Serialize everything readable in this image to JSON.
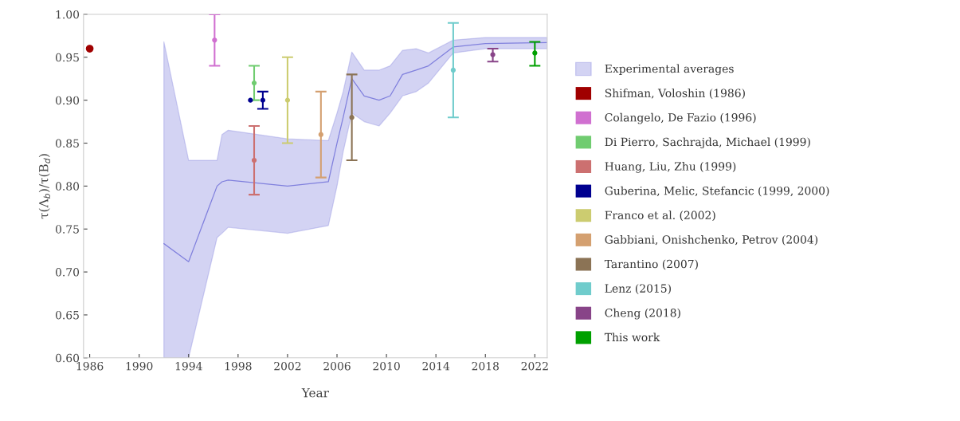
{
  "chart_data": {
    "type": "scatter",
    "xlabel": "Year",
    "ylabel": "τ(Λ$_{b}$)/τ(B$_{d}$)",
    "xlim": [
      1985.5,
      2023
    ],
    "xticks": [
      1986,
      1990,
      1994,
      1998,
      2002,
      2006,
      2010,
      2014,
      2018,
      2022
    ],
    "ylim": [
      0.6,
      1.0
    ],
    "yticks": [
      {
        "value": 0.6,
        "label": "0.60"
      },
      {
        "value": 0.65,
        "label": "0.65"
      },
      {
        "value": 0.7,
        "label": "0.70"
      },
      {
        "value": 0.75,
        "label": "0.75"
      },
      {
        "value": 0.8,
        "label": "0.80"
      },
      {
        "value": 0.85,
        "label": "0.85"
      },
      {
        "value": 0.9,
        "label": "0.90"
      },
      {
        "value": 0.95,
        "label": "0.95"
      },
      {
        "value": 1.0,
        "label": "1.00"
      }
    ],
    "grid": false,
    "legend": "right",
    "marker": "circle",
    "series": [
      {
        "type": "line",
        "name": "Experimental averages",
        "color": "#8080dd",
        "marker": "none",
        "x": [
          1992,
          1994,
          1996.3,
          1996.7,
          1997.2,
          2002,
          2005.3,
          2006,
          2006.5,
          2007.2,
          2008.2,
          2009.4,
          2010.3,
          2011.3,
          2012.4,
          2013.4,
          2015.4,
          2018,
          2023
        ],
        "values": [
          0.733,
          0.712,
          0.8,
          0.805,
          0.807,
          0.8,
          0.805,
          0.85,
          0.88,
          0.925,
          0.905,
          0.9,
          0.905,
          0.93,
          0.935,
          0.94,
          0.962,
          0.966,
          0.967
        ],
        "upper": [
          0.968,
          0.83,
          0.83,
          0.86,
          0.865,
          0.855,
          0.853,
          0.885,
          0.91,
          0.956,
          0.935,
          0.935,
          0.94,
          0.958,
          0.96,
          0.955,
          0.97,
          0.973,
          0.973
        ],
        "lower": [
          0.6,
          0.6,
          0.74,
          0.745,
          0.752,
          0.745,
          0.754,
          0.8,
          0.84,
          0.885,
          0.875,
          0.87,
          0.885,
          0.905,
          0.91,
          0.92,
          0.955,
          0.96,
          0.96
        ]
      },
      {
        "name": "Shifman, Voloshin (1986)",
        "color": "#a00000",
        "x": [
          1986
        ],
        "values": [
          0.96
        ]
      },
      {
        "name": "Colangelo, De Fazio (1996)",
        "color": "#d070d0",
        "x": [
          1996.1
        ],
        "values": [
          0.97
        ],
        "errors": [
          [
            0.94,
            1.0
          ]
        ]
      },
      {
        "name": "Di Pierro, Sachrajda, Michael (1999)",
        "color": "#70cc70",
        "x": [
          1999.3
        ],
        "values": [
          0.92
        ],
        "errors": [
          [
            0.9,
            0.94
          ]
        ]
      },
      {
        "name": "Huang, Liu, Zhu (1999)",
        "color": "#cc7070",
        "x": [
          1999.3
        ],
        "values": [
          0.83
        ],
        "errors": [
          [
            0.79,
            0.87
          ]
        ]
      },
      {
        "name": "Guberina, Melic, Stefancic (1999, 2000)",
        "color": "#000090",
        "x": [
          1999,
          2000
        ],
        "values": [
          0.9,
          0.9
        ],
        "errors": [
          null,
          [
            0.89,
            0.91
          ]
        ]
      },
      {
        "name": "Franco et al. (2002)",
        "color": "#cccc70",
        "x": [
          2002
        ],
        "values": [
          0.9
        ],
        "errors": [
          [
            0.85,
            0.95
          ]
        ]
      },
      {
        "name": "Gabbiani, Onishchenko, Petrov (2004)",
        "color": "#d4a070",
        "x": [
          2004.7
        ],
        "values": [
          0.86
        ],
        "errors": [
          [
            0.81,
            0.91
          ]
        ]
      },
      {
        "name": "Tarantino (2007)",
        "color": "#8b7355",
        "x": [
          2007.2
        ],
        "values": [
          0.88
        ],
        "errors": [
          [
            0.83,
            0.93
          ]
        ]
      },
      {
        "name": "Lenz (2015)",
        "color": "#70cccc",
        "x": [
          2015.4
        ],
        "values": [
          0.935
        ],
        "errors": [
          [
            0.88,
            0.99
          ]
        ]
      },
      {
        "name": "Cheng (2018)",
        "color": "#884488",
        "x": [
          2018.6
        ],
        "values": [
          0.953
        ],
        "errors": [
          [
            0.945,
            0.96
          ]
        ]
      },
      {
        "name": "This work",
        "color": "#00a000",
        "x": [
          2022
        ],
        "values": [
          0.955
        ],
        "errors": [
          [
            0.94,
            0.968
          ]
        ]
      }
    ]
  }
}
